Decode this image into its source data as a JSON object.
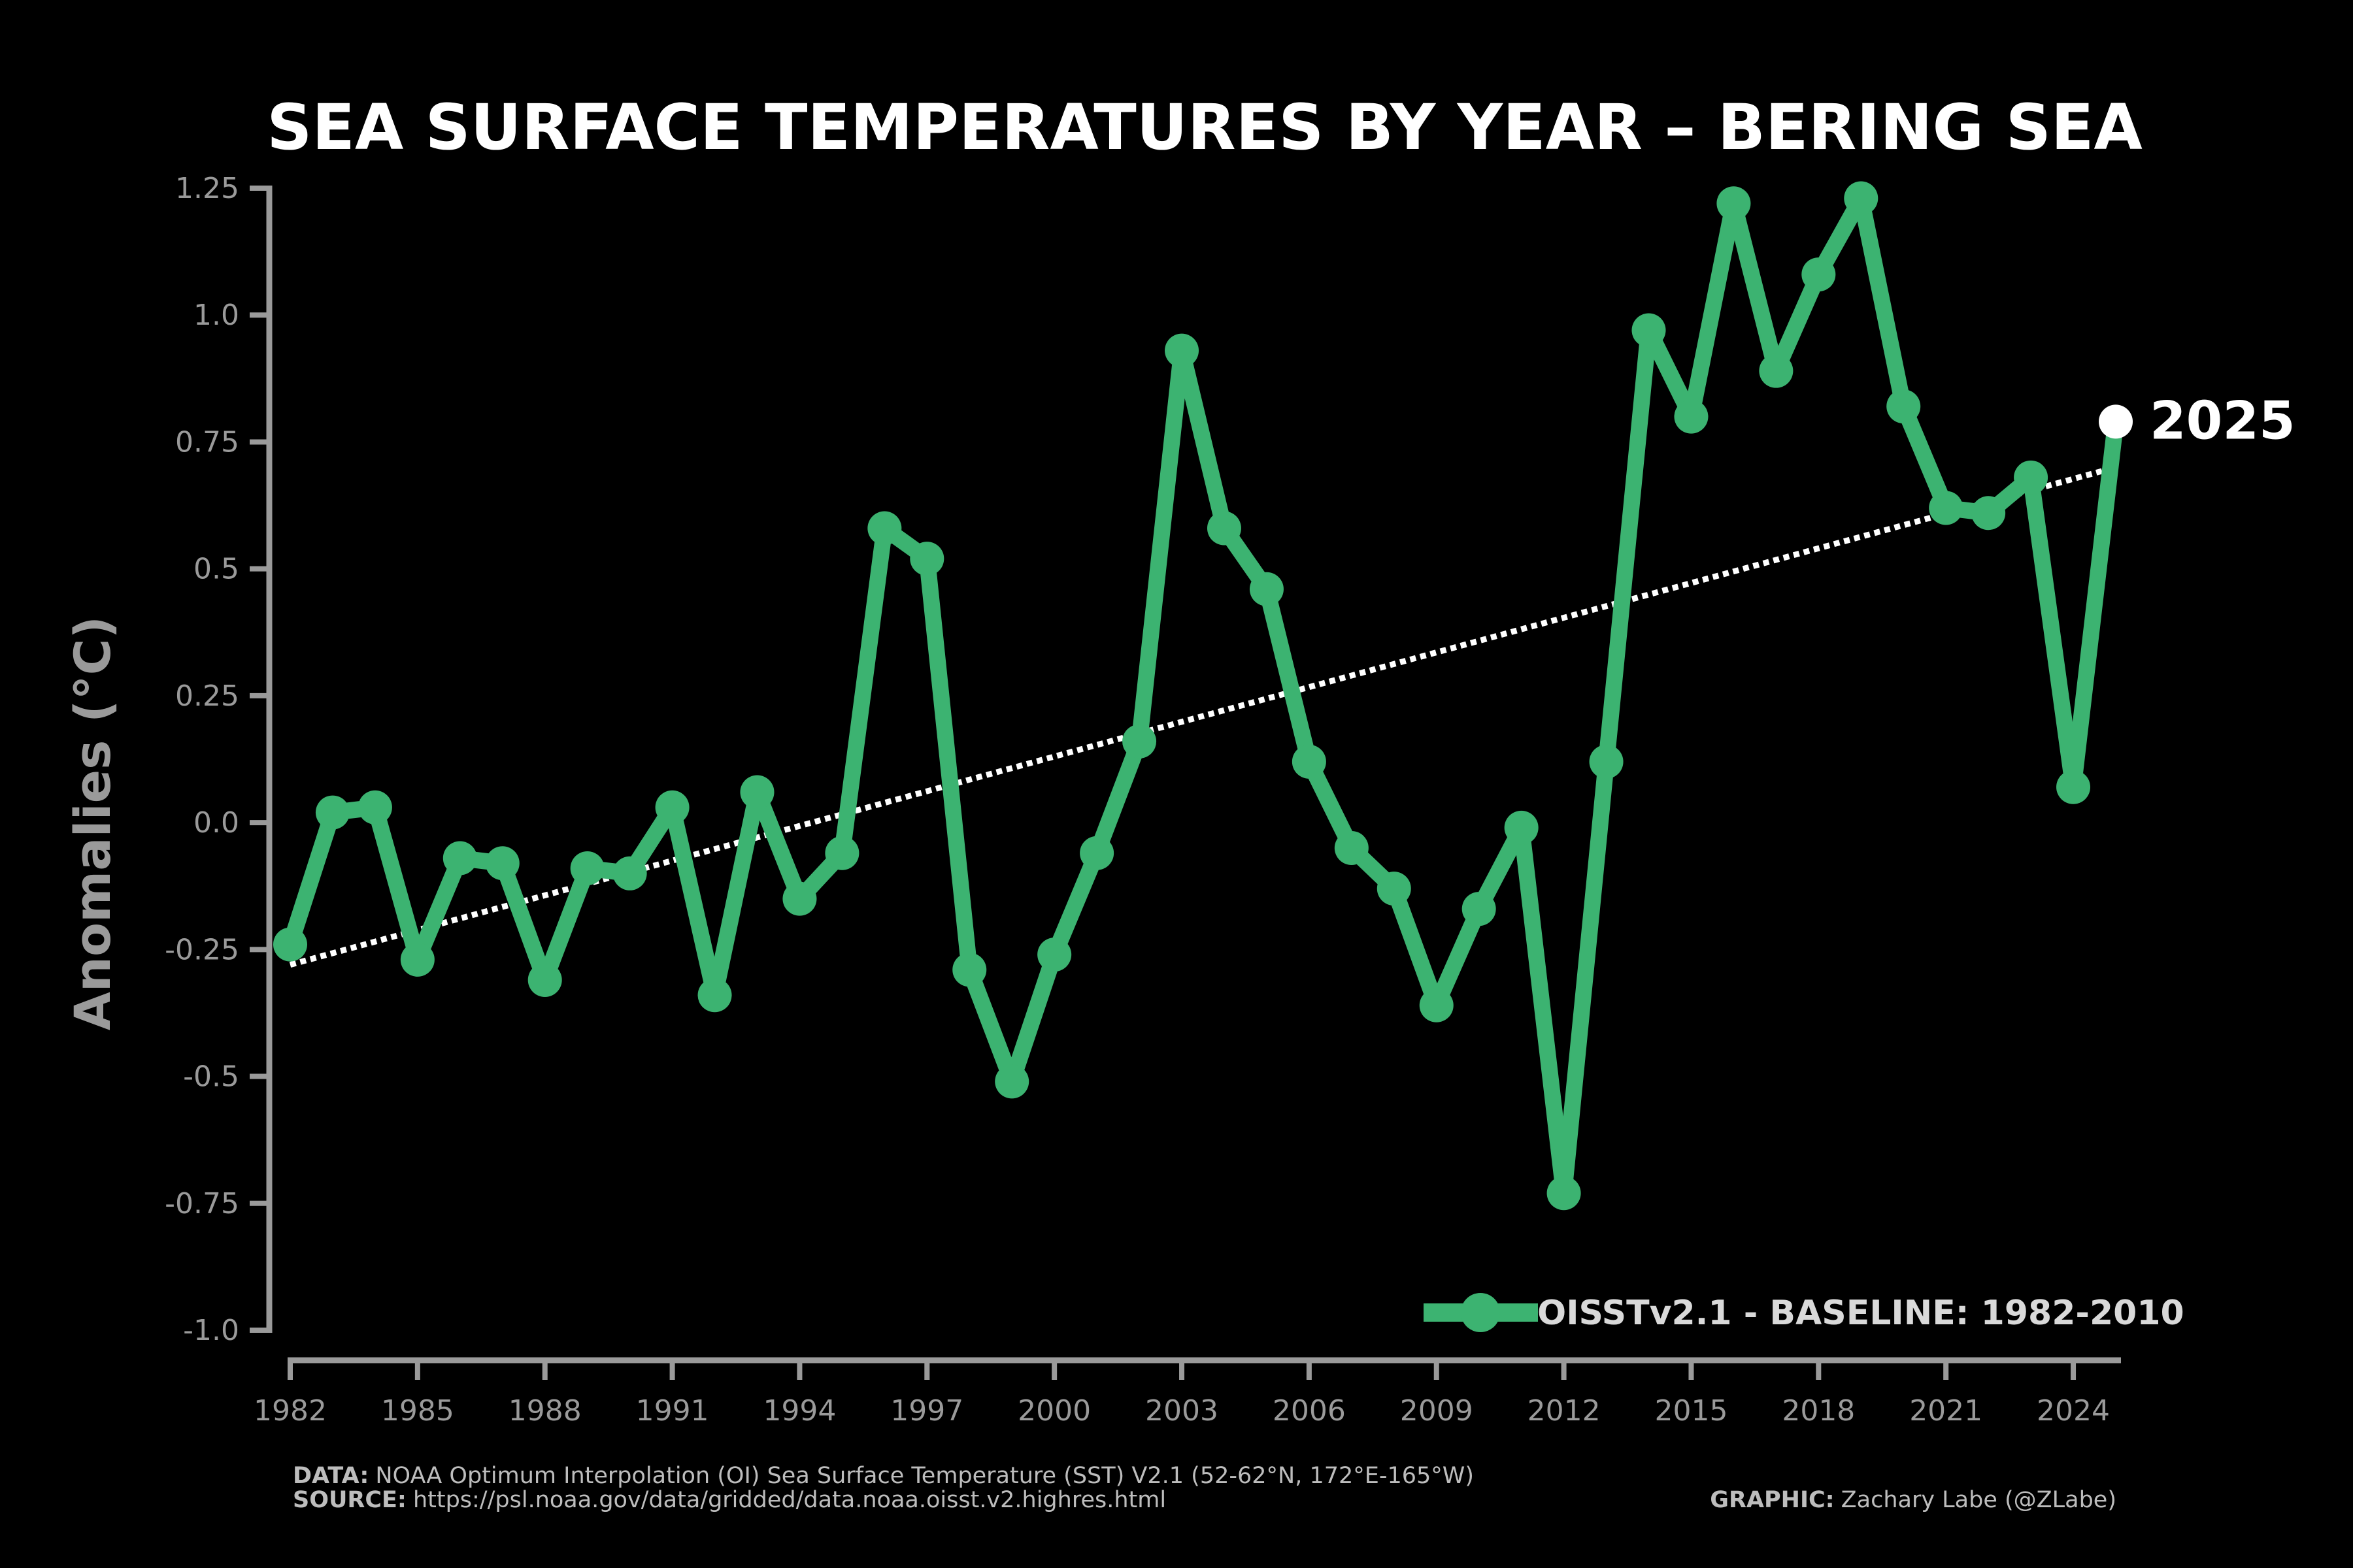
{
  "colors": {
    "background": "#000000",
    "series": "#3cb371",
    "trend": "#ffffff",
    "axis": "#9a9a9a",
    "text": "#ffffff",
    "highlight": "#ffffff"
  },
  "chart_data": {
    "type": "line",
    "title": "SEA SURFACE TEMPERATURES BY YEAR – BERING SEA",
    "xlabel": "",
    "ylabel": "Anomalies (°C)",
    "xlim": [
      1982,
      2025
    ],
    "ylim": [
      -1.0,
      1.25
    ],
    "yticks": [
      1.25,
      1.0,
      0.75,
      0.5,
      0.25,
      0.0,
      -0.25,
      -0.5,
      -0.75,
      -1.0
    ],
    "ytick_labels": [
      "1.25",
      "1.0",
      "0.75",
      "0.5",
      "0.25",
      "0.0",
      "-0.25",
      "-0.5",
      "-0.75",
      "-1.0"
    ],
    "xticks": [
      1982,
      1985,
      1988,
      1991,
      1994,
      1997,
      2000,
      2003,
      2006,
      2009,
      2012,
      2015,
      2018,
      2021,
      2024
    ],
    "xtick_labels": [
      "1982",
      "1985",
      "1988",
      "1991",
      "1994",
      "1997",
      "2000",
      "2003",
      "2006",
      "2009",
      "2012",
      "2015",
      "2018",
      "2021",
      "2024"
    ],
    "grid": false,
    "legend_position": "bottom-right",
    "series": [
      {
        "name": "OISSTv2.1 - BASELINE: 1982-2010",
        "x": [
          1982,
          1983,
          1984,
          1985,
          1986,
          1987,
          1988,
          1989,
          1990,
          1991,
          1992,
          1993,
          1994,
          1995,
          1996,
          1997,
          1998,
          1999,
          2000,
          2001,
          2002,
          2003,
          2004,
          2005,
          2006,
          2007,
          2008,
          2009,
          2010,
          2011,
          2012,
          2013,
          2014,
          2015,
          2016,
          2017,
          2018,
          2019,
          2020,
          2021,
          2022,
          2023,
          2024,
          2025
        ],
        "values": [
          -0.24,
          0.02,
          0.03,
          -0.27,
          -0.07,
          -0.08,
          -0.31,
          -0.09,
          -0.1,
          0.03,
          -0.34,
          0.06,
          -0.15,
          -0.06,
          0.58,
          0.52,
          -0.29,
          -0.51,
          -0.26,
          -0.06,
          0.16,
          0.93,
          0.58,
          0.46,
          0.12,
          -0.05,
          -0.13,
          -0.36,
          -0.17,
          -0.01,
          -0.73,
          0.12,
          0.97,
          0.8,
          1.22,
          0.89,
          1.08,
          1.23,
          0.82,
          0.62,
          0.61,
          0.68,
          0.07,
          0.79
        ]
      }
    ],
    "trend": {
      "name": "linear trend",
      "x": [
        1982,
        2025
      ],
      "values": [
        -0.28,
        0.7
      ]
    },
    "annotation": {
      "text": "2025",
      "x": 2025,
      "y": 0.79
    }
  },
  "footer": {
    "data_label": "DATA:",
    "data_text": "NOAA Optimum Interpolation (OI) Sea Surface Temperature (SST) V2.1 (52-62°N, 172°E-165°W)",
    "source_label": "SOURCE:",
    "source_text": "https://psl.noaa.gov/data/gridded/data.noaa.oisst.v2.highres.html",
    "graphic_label": "GRAPHIC:",
    "graphic_text": "Zachary Labe (@ZLabe)"
  }
}
